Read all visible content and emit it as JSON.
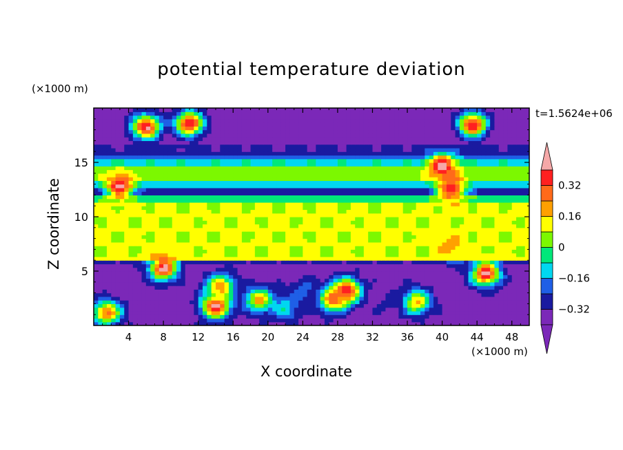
{
  "chart_data": {
    "type": "heatmap",
    "title": "potential temperature deviation",
    "xlabel": "X coordinate",
    "ylabel": "Z coordinate",
    "x_unit": "(×1000 m)",
    "y_unit": "(×1000 m)",
    "annotation": "t=1.5624e+06",
    "xlim": [
      0,
      50
    ],
    "ylim": [
      0,
      20
    ],
    "x_ticks": [
      4,
      8,
      12,
      16,
      20,
      24,
      28,
      32,
      36,
      40,
      44,
      48
    ],
    "x_tick_labels": [
      "4",
      "8",
      "12",
      "16",
      "20",
      "24",
      "28",
      "32",
      "36",
      "40",
      "44",
      "48"
    ],
    "y_ticks": [
      5,
      10,
      15
    ],
    "y_tick_labels": [
      "5",
      "10",
      "15"
    ],
    "colorbar": {
      "levels": [
        -0.4,
        -0.32,
        -0.24,
        -0.16,
        -0.08,
        0,
        0.08,
        0.16,
        0.24,
        0.32,
        0.4
      ],
      "tick_values": [
        0.32,
        0.16,
        0,
        -0.16,
        -0.32
      ],
      "tick_labels": [
        "0.32",
        "0.16",
        "0",
        "−0.16",
        "−0.32"
      ],
      "colors": [
        "#7b28b8",
        "#1a1aa0",
        "#1f5fe6",
        "#00d7f0",
        "#00e87a",
        "#7cf800",
        "#ffff00",
        "#ffa000",
        "#ff6a1a",
        "#ff2020",
        "#f5a8a8"
      ],
      "extend": "both"
    },
    "field_layers": [
      {
        "z": [
          0,
          5.8
        ],
        "base": -0.36
      },
      {
        "z": [
          5.8,
          6.1
        ],
        "base": -0.3
      },
      {
        "z": [
          6.1,
          11.4
        ],
        "base": 0.09
      },
      {
        "z": [
          11.4,
          11.9
        ],
        "base": -0.02
      },
      {
        "z": [
          11.9,
          12.8
        ],
        "base": -0.28
      },
      {
        "z": [
          12.8,
          13.2
        ],
        "base": -0.12
      },
      {
        "z": [
          13.2,
          14.8
        ],
        "base": 0.04
      },
      {
        "z": [
          14.8,
          15.3
        ],
        "base": -0.1
      },
      {
        "z": [
          15.3,
          15.7
        ],
        "base": -0.2
      },
      {
        "z": [
          15.7,
          16.6
        ],
        "base": -0.3
      },
      {
        "z": [
          16.6,
          20
        ],
        "base": -0.38
      }
    ],
    "anomalies": [
      {
        "x": 6,
        "z": 18.3,
        "value": 0.42
      },
      {
        "x": 11,
        "z": 18.6,
        "value": 0.42
      },
      {
        "x": 3,
        "z": 12.8,
        "value": 0.42
      },
      {
        "x": 8,
        "z": 5.3,
        "value": 0.42
      },
      {
        "x": 14,
        "z": 1.8,
        "value": 0.42
      },
      {
        "x": 14.5,
        "z": 3.6,
        "value": 0.24
      },
      {
        "x": 19,
        "z": 2.4,
        "value": 0.2
      },
      {
        "x": 29,
        "z": 3.2,
        "value": 0.42
      },
      {
        "x": 27.5,
        "z": 2.4,
        "value": 0.3
      },
      {
        "x": 1.5,
        "z": 1.2,
        "value": 0.28
      },
      {
        "x": 37,
        "z": 2.2,
        "value": 0.2
      },
      {
        "x": 45,
        "z": 4.8,
        "value": 0.42
      },
      {
        "x": 43.5,
        "z": 18.5,
        "value": 0.42
      },
      {
        "x": 40,
        "z": 14.7,
        "value": 0.42
      },
      {
        "x": 41,
        "z": 12.6,
        "value": 0.42
      },
      {
        "x": 41,
        "z": 7.3,
        "value": 0.2
      },
      {
        "x": 22,
        "z": 1.6,
        "value": -0.08
      },
      {
        "x": 34,
        "z": 2,
        "value": -0.3
      },
      {
        "x": 24,
        "z": 3.2,
        "value": -0.2
      }
    ]
  }
}
